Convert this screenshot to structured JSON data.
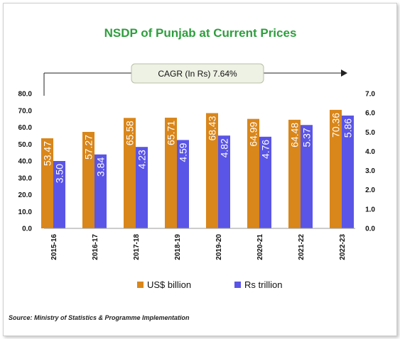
{
  "chart_data": {
    "type": "bar",
    "title": "NSDP of Punjab at Current Prices",
    "categories": [
      "2015-16",
      "2016-17",
      "2017-18",
      "2018-19",
      "2019-20",
      "2020-21",
      "2021-22",
      "2022-23"
    ],
    "series": [
      {
        "name": "US$ billion",
        "axis": "left",
        "color": "#d9861a",
        "values": [
          53.47,
          57.27,
          65.58,
          65.71,
          68.43,
          64.99,
          64.48,
          70.36
        ],
        "labels": [
          "53.47",
          "57.27",
          "65.58",
          "65.71",
          "68.43",
          "64.99",
          "64.48",
          "70.36"
        ]
      },
      {
        "name": "Rs trillion",
        "axis": "right",
        "color": "#5a55e6",
        "values": [
          3.5,
          3.84,
          4.23,
          4.59,
          4.82,
          4.76,
          5.37,
          5.86
        ],
        "labels": [
          "3.50",
          "3.84",
          "4.23",
          "4.59",
          "4.82",
          "4.76",
          "5.37",
          "5.86"
        ]
      }
    ],
    "y_left": {
      "min": 0,
      "max": 80,
      "ticks": [
        "0.0",
        "10.0",
        "20.0",
        "30.0",
        "40.0",
        "50.0",
        "60.0",
        "70.0",
        "80.0"
      ]
    },
    "y_right": {
      "min": 0,
      "max": 7,
      "ticks": [
        "0.0",
        "1.0",
        "2.0",
        "3.0",
        "4.0",
        "5.0",
        "6.0",
        "7.0"
      ]
    },
    "annotation": "CAGR (In Rs) 7.64%",
    "legend_position": "bottom",
    "grid": false
  },
  "source": "Source: Ministry of Statistics & Programme Implementation"
}
